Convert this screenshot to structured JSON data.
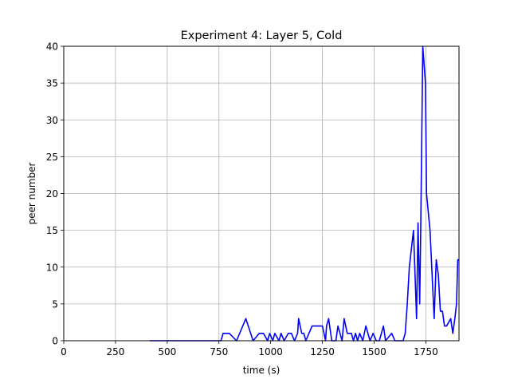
{
  "chart_data": {
    "type": "line",
    "title": "Experiment 4: Layer 5, Cold",
    "xlabel": "time (s)",
    "ylabel": "peer number",
    "xlim": [
      0,
      1910
    ],
    "ylim": [
      0,
      40
    ],
    "xticks": [
      0,
      250,
      500,
      750,
      1000,
      1250,
      1500,
      1750
    ],
    "yticks": [
      0,
      5,
      10,
      15,
      20,
      25,
      30,
      35,
      40
    ],
    "grid": true,
    "line_color": "#0000ff",
    "series": [
      {
        "x": [
          415,
          760,
          770,
          800,
          835,
          880,
          915,
          945,
          965,
          985,
          995,
          1010,
          1020,
          1040,
          1050,
          1065,
          1085,
          1100,
          1115,
          1130,
          1135,
          1150,
          1160,
          1170,
          1200,
          1250,
          1265,
          1270,
          1280,
          1295,
          1315,
          1325,
          1345,
          1355,
          1370,
          1390,
          1400,
          1410,
          1420,
          1430,
          1445,
          1460,
          1480,
          1495,
          1510,
          1525,
          1545,
          1555,
          1585,
          1600,
          1640,
          1650,
          1660,
          1670,
          1690,
          1705,
          1712,
          1720,
          1725,
          1735,
          1748,
          1753,
          1770,
          1790,
          1800,
          1810,
          1820,
          1830,
          1840,
          1850,
          1870,
          1880,
          1890,
          1898,
          1904,
          1910
        ],
        "y": [
          0,
          0,
          1,
          1,
          0,
          3,
          0,
          1,
          1,
          0,
          1,
          0,
          1,
          0,
          1,
          0,
          1,
          1,
          0,
          1,
          3,
          1,
          1,
          0,
          2,
          2,
          0,
          2,
          3,
          0,
          0,
          2,
          0,
          3,
          1,
          1,
          0,
          1,
          0,
          1,
          0,
          2,
          0,
          1,
          0,
          0,
          2,
          0,
          1,
          0,
          0,
          1,
          5,
          10,
          15,
          3,
          16,
          5,
          15,
          40,
          35,
          20,
          15,
          3,
          11,
          9,
          4,
          4,
          2,
          2,
          3,
          1,
          3,
          5,
          11,
          11
        ]
      }
    ]
  }
}
